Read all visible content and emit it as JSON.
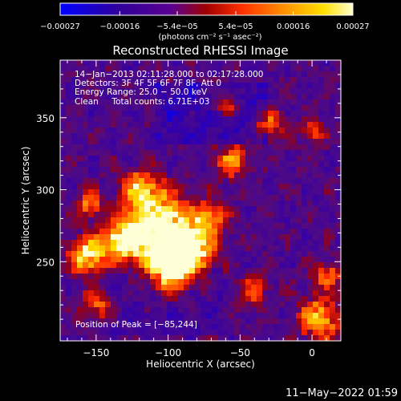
{
  "chart_data": {
    "type": "heatmap",
    "title": "Reconstructed RHESSI Image",
    "xlabel": "Heliocentric X (arcsec)",
    "ylabel": "Heliocentric Y (arcsec)",
    "xlim": [
      -175,
      20
    ],
    "ylim": [
      195,
      390
    ],
    "x_ticks": [
      -150,
      -100,
      -50,
      0
    ],
    "x_tick_labels": [
      "−150",
      "−100",
      "−50",
      "0"
    ],
    "y_ticks": [
      250,
      300,
      350
    ],
    "y_tick_labels": [
      "250",
      "300",
      "350"
    ],
    "colorbar": {
      "min": -0.00027,
      "max": 0.00027,
      "tick_values": [
        -0.00027,
        -0.00016,
        -5.4e-05,
        5.4e-05,
        0.00016,
        0.00027
      ],
      "tick_labels": [
        "−0.00027",
        "−0.00016",
        "−5.4e−05",
        "5.4e−05",
        "0.00016",
        "0.00027"
      ],
      "unit_label": "(photons cm⁻² s⁻¹ asec⁻²)",
      "colormap": [
        "#0000ff",
        "#30009a",
        "#5a0090",
        "#a00000",
        "#ff3000",
        "#ff9a00",
        "#ffe000",
        "#ffffd0"
      ]
    },
    "annotations": [
      "14−Jan−2013 02:11:28.000 to 02:17:28.000",
      "Detectors: 3F 4F 5F 6F 7F 8F, Att 0",
      "Energy Range: 25.0 − 50.0 keV",
      "Clean     Total counts: 6.71E+03"
    ],
    "peak_label": "Position of Peak = [−85,244]",
    "peak": [
      -85,
      244
    ],
    "grid": false
  },
  "timestamp": "11−May−2022 01:59"
}
